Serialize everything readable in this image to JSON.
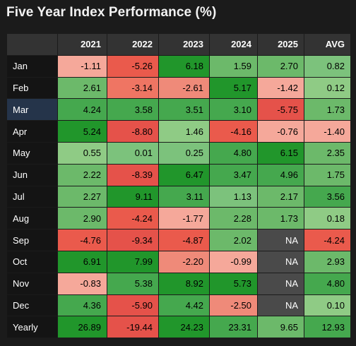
{
  "title": "Five Year Index Performance (%)",
  "columns": [
    "2021",
    "2022",
    "2023",
    "2024",
    "2025",
    "AVG"
  ],
  "selected_row": "Mar",
  "palette": {
    "strong_green": "#1e9a2e",
    "green": "#45a84e",
    "light_green": "#7cc27c",
    "pale_green": "#9bd08f",
    "light_red": "#f5a89a",
    "red": "#ef7563",
    "strong_red": "#e5524a",
    "na_gray": "#4a4a4a",
    "row_label_bg": "#141414",
    "selected_row_bg": "#25344a",
    "header_bg": "#333333"
  },
  "rows": [
    {
      "label": "Jan",
      "cells": [
        {
          "text": "-1.11",
          "color": "#f5a89a"
        },
        {
          "text": "-5.26",
          "color": "#ea5a4c"
        },
        {
          "text": "6.18",
          "color": "#21962b"
        },
        {
          "text": "1.59",
          "color": "#6cb96a"
        },
        {
          "text": "2.70",
          "color": "#6cb96a"
        },
        {
          "text": "0.82",
          "color": "#7cc27c"
        }
      ]
    },
    {
      "label": "Feb",
      "cells": [
        {
          "text": "2.61",
          "color": "#6cb96a"
        },
        {
          "text": "-3.14",
          "color": "#ef7563"
        },
        {
          "text": "-2.61",
          "color": "#ef8a79"
        },
        {
          "text": "5.17",
          "color": "#21962b"
        },
        {
          "text": "-1.42",
          "color": "#f5a89a"
        },
        {
          "text": "0.12",
          "color": "#8fcb85"
        }
      ]
    },
    {
      "label": "Mar",
      "cells": [
        {
          "text": "4.24",
          "color": "#45a84e"
        },
        {
          "text": "3.58",
          "color": "#45a84e"
        },
        {
          "text": "3.51",
          "color": "#45a84e"
        },
        {
          "text": "3.10",
          "color": "#45a84e"
        },
        {
          "text": "-5.75",
          "color": "#e5524a"
        },
        {
          "text": "1.73",
          "color": "#6cb96a"
        }
      ]
    },
    {
      "label": "Apr",
      "cells": [
        {
          "text": "5.24",
          "color": "#21962b"
        },
        {
          "text": "-8.80",
          "color": "#e5524a"
        },
        {
          "text": "1.46",
          "color": "#8fcb85"
        },
        {
          "text": "-4.16",
          "color": "#ea5a4c"
        },
        {
          "text": "-0.76",
          "color": "#f5a89a"
        },
        {
          "text": "-1.40",
          "color": "#f5a89a"
        }
      ]
    },
    {
      "label": "May",
      "cells": [
        {
          "text": "0.55",
          "color": "#8fcb85"
        },
        {
          "text": "0.01",
          "color": "#7cc27c"
        },
        {
          "text": "0.25",
          "color": "#7cc27c"
        },
        {
          "text": "4.80",
          "color": "#45a84e"
        },
        {
          "text": "6.15",
          "color": "#21962b"
        },
        {
          "text": "2.35",
          "color": "#6cb96a"
        }
      ]
    },
    {
      "label": "Jun",
      "cells": [
        {
          "text": "2.22",
          "color": "#6cb96a"
        },
        {
          "text": "-8.39",
          "color": "#e5524a"
        },
        {
          "text": "6.47",
          "color": "#21962b"
        },
        {
          "text": "3.47",
          "color": "#45a84e"
        },
        {
          "text": "4.96",
          "color": "#45a84e"
        },
        {
          "text": "1.75",
          "color": "#6cb96a"
        }
      ]
    },
    {
      "label": "Jul",
      "cells": [
        {
          "text": "2.27",
          "color": "#6cb96a"
        },
        {
          "text": "9.11",
          "color": "#21962b"
        },
        {
          "text": "3.11",
          "color": "#45a84e"
        },
        {
          "text": "1.13",
          "color": "#7cc27c"
        },
        {
          "text": "2.17",
          "color": "#6cb96a"
        },
        {
          "text": "3.56",
          "color": "#45a84e"
        }
      ]
    },
    {
      "label": "Aug",
      "cells": [
        {
          "text": "2.90",
          "color": "#6cb96a"
        },
        {
          "text": "-4.24",
          "color": "#ea5a4c"
        },
        {
          "text": "-1.77",
          "color": "#f5a89a"
        },
        {
          "text": "2.28",
          "color": "#6cb96a"
        },
        {
          "text": "1.73",
          "color": "#6cb96a"
        },
        {
          "text": "0.18",
          "color": "#8fcb85"
        }
      ]
    },
    {
      "label": "Sep",
      "cells": [
        {
          "text": "-4.76",
          "color": "#ea5a4c"
        },
        {
          "text": "-9.34",
          "color": "#e5524a"
        },
        {
          "text": "-4.87",
          "color": "#ea5a4c"
        },
        {
          "text": "2.02",
          "color": "#6cb96a"
        },
        {
          "text": "NA",
          "color": "#4a4a4a",
          "na": true
        },
        {
          "text": "-4.24",
          "color": "#ea5a4c"
        }
      ]
    },
    {
      "label": "Oct",
      "cells": [
        {
          "text": "6.91",
          "color": "#21962b"
        },
        {
          "text": "7.99",
          "color": "#21962b"
        },
        {
          "text": "-2.20",
          "color": "#ef8a79"
        },
        {
          "text": "-0.99",
          "color": "#f5a89a"
        },
        {
          "text": "NA",
          "color": "#4a4a4a",
          "na": true
        },
        {
          "text": "2.93",
          "color": "#6cb96a"
        }
      ]
    },
    {
      "label": "Nov",
      "cells": [
        {
          "text": "-0.83",
          "color": "#f5a89a"
        },
        {
          "text": "5.38",
          "color": "#45a84e"
        },
        {
          "text": "8.92",
          "color": "#21962b"
        },
        {
          "text": "5.73",
          "color": "#21962b"
        },
        {
          "text": "NA",
          "color": "#4a4a4a",
          "na": true
        },
        {
          "text": "4.80",
          "color": "#45a84e"
        }
      ]
    },
    {
      "label": "Dec",
      "cells": [
        {
          "text": "4.36",
          "color": "#45a84e"
        },
        {
          "text": "-5.90",
          "color": "#e5524a"
        },
        {
          "text": "4.42",
          "color": "#45a84e"
        },
        {
          "text": "-2.50",
          "color": "#ef8a79"
        },
        {
          "text": "NA",
          "color": "#4a4a4a",
          "na": true
        },
        {
          "text": "0.10",
          "color": "#8fcb85"
        }
      ]
    },
    {
      "label": "Yearly",
      "cells": [
        {
          "text": "26.89",
          "color": "#21962b"
        },
        {
          "text": "-19.44",
          "color": "#e5524a"
        },
        {
          "text": "24.23",
          "color": "#21962b"
        },
        {
          "text": "23.31",
          "color": "#45a84e"
        },
        {
          "text": "9.65",
          "color": "#6cb96a"
        },
        {
          "text": "12.93",
          "color": "#45a84e"
        }
      ]
    }
  ]
}
